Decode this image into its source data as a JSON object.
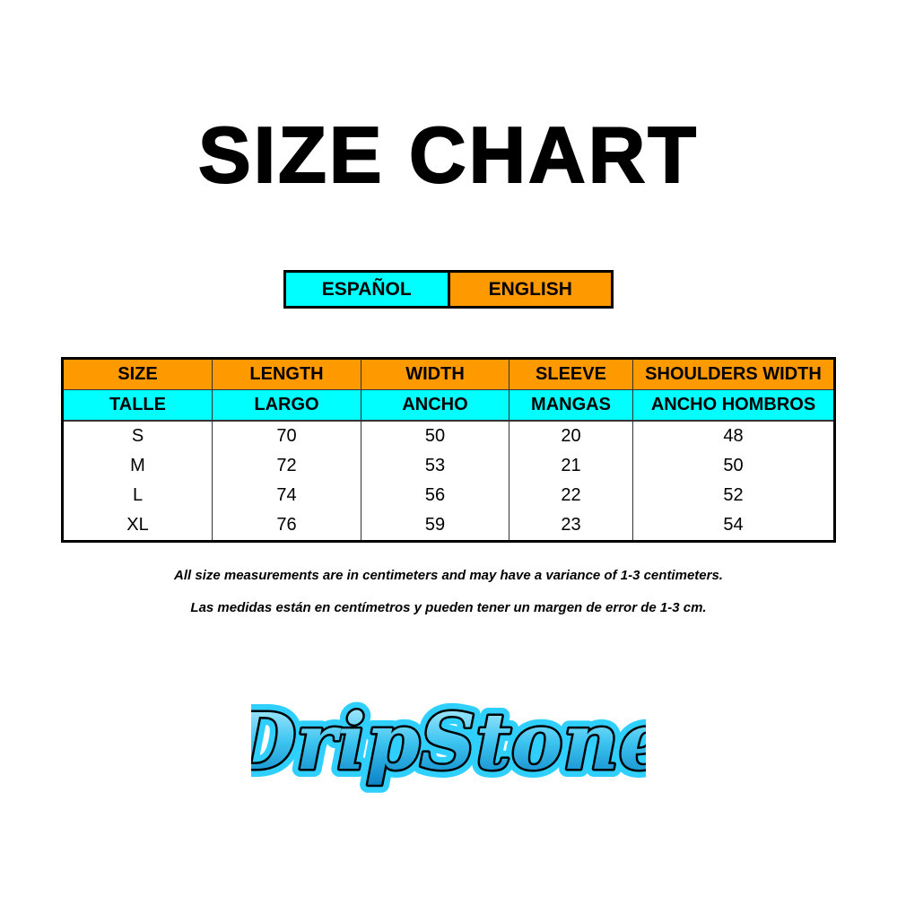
{
  "title": "SIZE CHART",
  "language_legend": {
    "spanish": "ESPAÑOL",
    "english": "ENGLISH"
  },
  "colors": {
    "english": "#ff9900",
    "spanish": "#00ffff"
  },
  "table": {
    "headers_en": [
      "SIZE",
      "LENGTH",
      "WIDTH",
      "SLEEVE",
      "SHOULDERS WIDTH"
    ],
    "headers_es": [
      "TALLE",
      "LARGO",
      "ANCHO",
      "MANGAS",
      "ANCHO HOMBROS"
    ],
    "rows": [
      [
        "S",
        "70",
        "50",
        "20",
        "48"
      ],
      [
        "M",
        "72",
        "53",
        "21",
        "50"
      ],
      [
        "L",
        "74",
        "56",
        "22",
        "52"
      ],
      [
        "XL",
        "76",
        "59",
        "23",
        "54"
      ]
    ]
  },
  "notes": {
    "en": "All size measurements are in centimeters and may have a variance of 1-3 centimeters.",
    "es": "Las medidas están en centímetros y pueden tener un margen de error de 1-3 cm."
  },
  "logo": {
    "text": "DripStone"
  }
}
